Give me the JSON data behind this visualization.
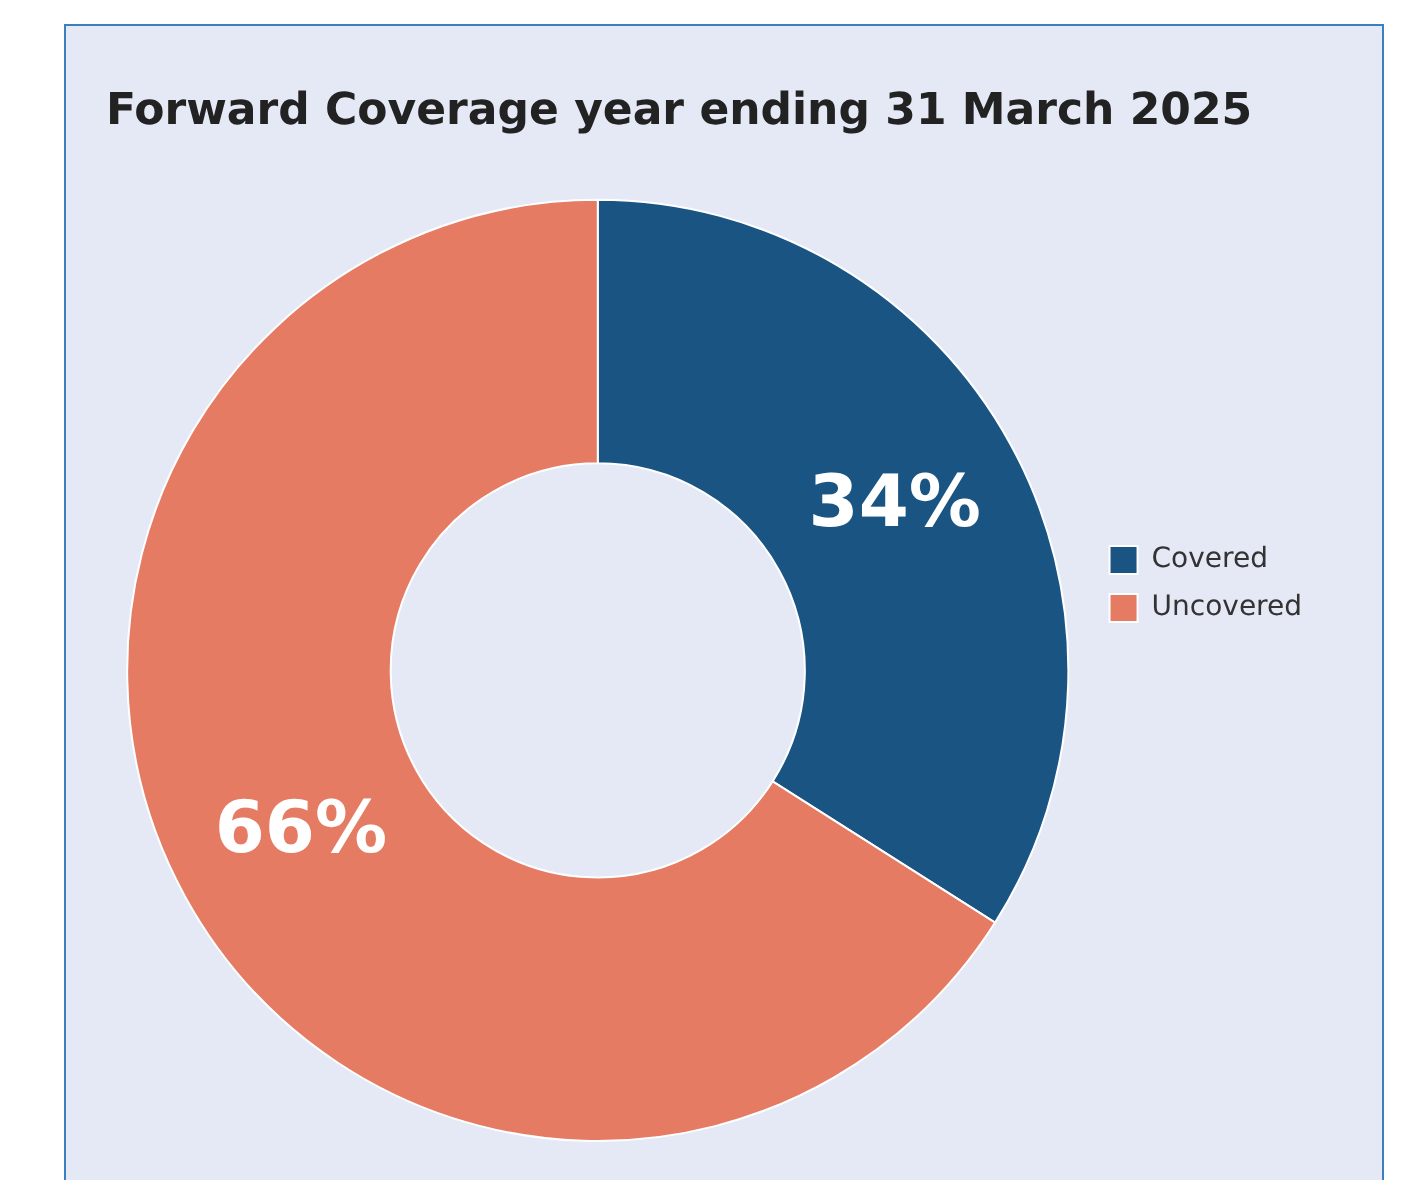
{
  "chart_data": {
    "type": "donut",
    "title": "Forward Coverage year ending 31 March 2025",
    "categories": [
      "Covered",
      "Uncovered"
    ],
    "values": [
      34,
      66
    ],
    "colors": [
      "#1a5482",
      "#e57b63"
    ],
    "value_labels": [
      "34%",
      "66%"
    ],
    "legend": "right"
  }
}
